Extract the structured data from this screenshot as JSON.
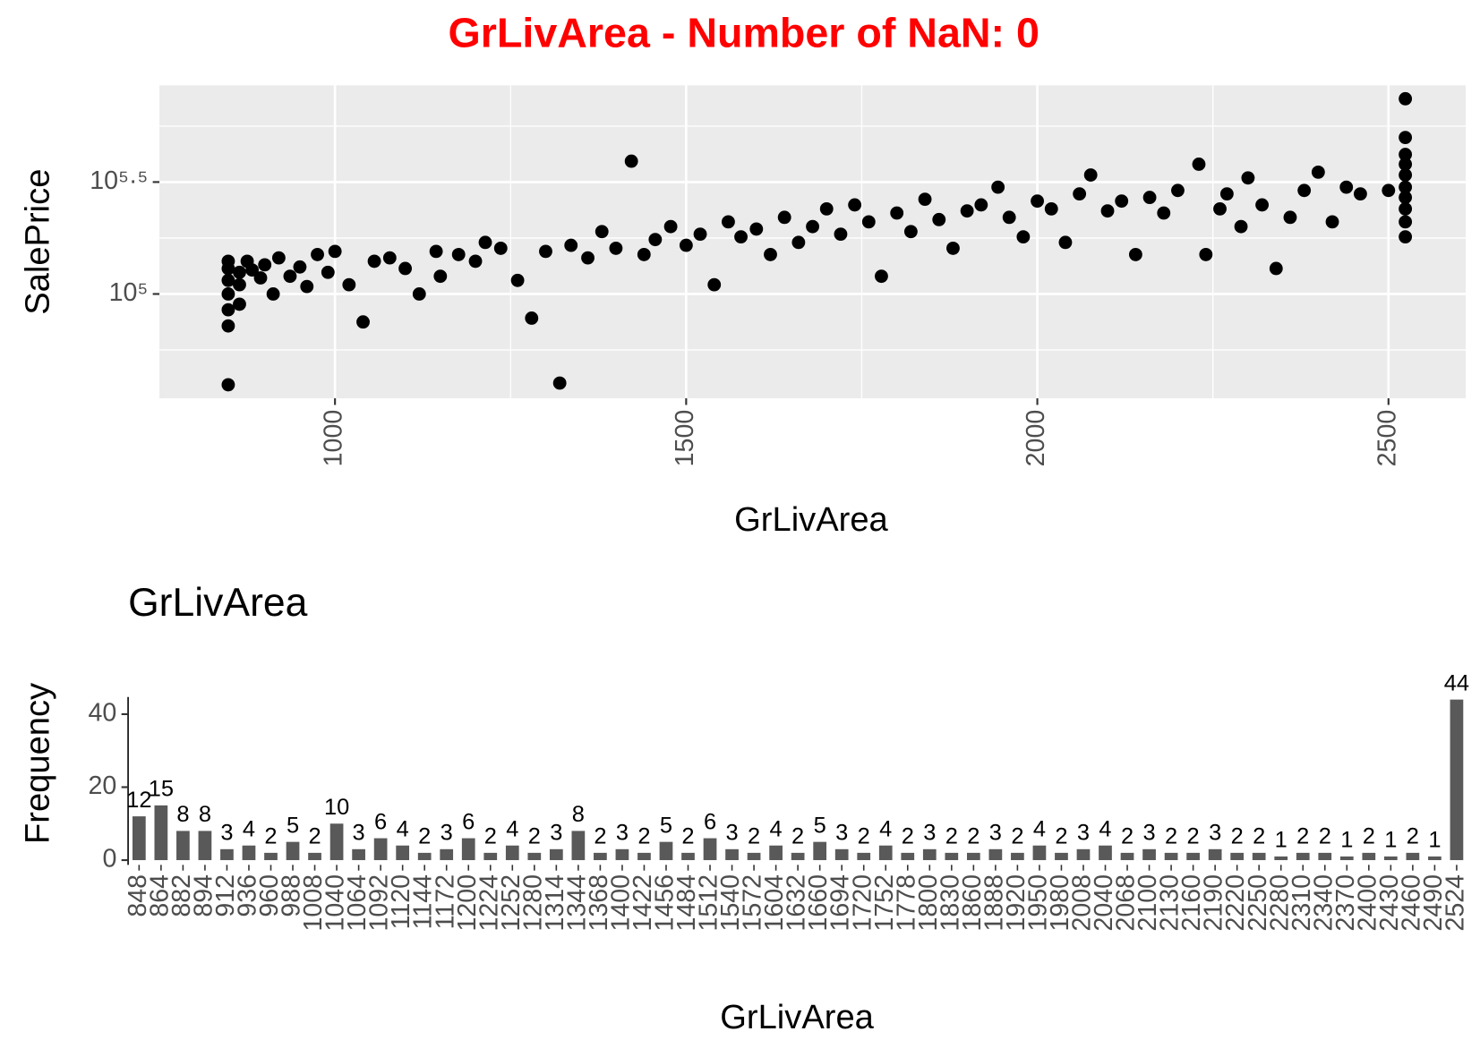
{
  "title": "GrLivArea - Number of NaN: 0",
  "chart_data": [
    {
      "type": "scatter",
      "x_label": "GrLivArea",
      "y_label": "SalePrice",
      "color": "#000000",
      "log_y": true,
      "grid": true,
      "xlim": [
        750,
        2610
      ],
      "xticks": [
        1000,
        1500,
        2000,
        2500
      ],
      "ylim": [
        34200,
        855000
      ],
      "yticks": [
        {
          "value": 100000,
          "label": "10⁵"
        },
        {
          "value": 316228,
          "label": "10⁵·⁵"
        }
      ],
      "x": [
        848,
        848,
        848,
        848,
        848,
        848,
        848,
        864,
        864,
        864,
        875,
        882,
        894,
        900,
        912,
        920,
        936,
        950,
        960,
        975,
        990,
        1000,
        1020,
        1040,
        1056,
        1078,
        1100,
        1120,
        1144,
        1150,
        1176,
        1200,
        1214,
        1236,
        1260,
        1280,
        1300,
        1320,
        1336,
        1360,
        1380,
        1400,
        1422,
        1440,
        1456,
        1478,
        1500,
        1520,
        1540,
        1560,
        1578,
        1600,
        1620,
        1640,
        1660,
        1680,
        1700,
        1720,
        1740,
        1760,
        1778,
        1800,
        1820,
        1840,
        1860,
        1880,
        1900,
        1920,
        1944,
        1960,
        1980,
        2000,
        2020,
        2040,
        2060,
        2076,
        2100,
        2120,
        2140,
        2160,
        2180,
        2200,
        2230,
        2240,
        2260,
        2270,
        2290,
        2300,
        2320,
        2340,
        2360,
        2380,
        2400,
        2420,
        2440,
        2460,
        2500,
        2524,
        2524,
        2524,
        2524,
        2524,
        2524,
        2524,
        2524,
        2524,
        2524
      ],
      "values": [
        39300,
        72000,
        85000,
        100000,
        115000,
        130000,
        140000,
        110000,
        125000,
        90000,
        140000,
        128000,
        118000,
        135000,
        100000,
        145000,
        120000,
        132000,
        108000,
        150000,
        125000,
        155000,
        110000,
        75000,
        140000,
        145000,
        130000,
        100000,
        155000,
        120000,
        150000,
        140000,
        170000,
        160000,
        115000,
        78000,
        155000,
        40000,
        165000,
        145000,
        190000,
        160000,
        392000,
        150000,
        175000,
        200000,
        165000,
        185000,
        110000,
        210000,
        180000,
        195000,
        150000,
        220000,
        170000,
        200000,
        240000,
        185000,
        250000,
        210000,
        120000,
        230000,
        190000,
        265000,
        215000,
        160000,
        235000,
        250000,
        300000,
        220000,
        180000,
        260000,
        240000,
        170000,
        280000,
        340000,
        235000,
        260000,
        150000,
        270000,
        230000,
        290000,
        380000,
        150000,
        240000,
        280000,
        200000,
        330000,
        250000,
        130000,
        220000,
        290000,
        350000,
        210000,
        300000,
        280000,
        290000,
        180000,
        210000,
        240000,
        270000,
        300000,
        340000,
        380000,
        420000,
        500000,
        745000
      ]
    },
    {
      "type": "bar",
      "title": "GrLivArea",
      "x_label": "GrLivArea",
      "y_label": "Frequency",
      "color": "#595959",
      "ylim": [
        -1.3,
        44.7
      ],
      "yticks": [
        0,
        20,
        40
      ],
      "categories": [
        848,
        864,
        882,
        894,
        912,
        936,
        960,
        988,
        1008,
        1040,
        1064,
        1092,
        1120,
        1144,
        1172,
        1200,
        1224,
        1252,
        1280,
        1314,
        1344,
        1368,
        1400,
        1422,
        1456,
        1484,
        1512,
        1540,
        1572,
        1604,
        1632,
        1660,
        1694,
        1720,
        1752,
        1778,
        1800,
        1830,
        1860,
        1888,
        1920,
        1950,
        1980,
        2008,
        2040,
        2068,
        2100,
        2130,
        2160,
        2190,
        2220,
        2250,
        2280,
        2310,
        2340,
        2370,
        2400,
        2430,
        2460,
        2490,
        2524
      ],
      "values": [
        12,
        15,
        8,
        8,
        3,
        4,
        2,
        5,
        2,
        10,
        3,
        6,
        4,
        2,
        3,
        6,
        2,
        4,
        2,
        3,
        8,
        2,
        3,
        2,
        5,
        2,
        6,
        3,
        2,
        4,
        2,
        5,
        3,
        2,
        4,
        2,
        3,
        2,
        2,
        3,
        2,
        4,
        2,
        3,
        4,
        2,
        3,
        2,
        2,
        3,
        2,
        2,
        1,
        2,
        2,
        1,
        2,
        1,
        2,
        1,
        44
      ]
    }
  ]
}
